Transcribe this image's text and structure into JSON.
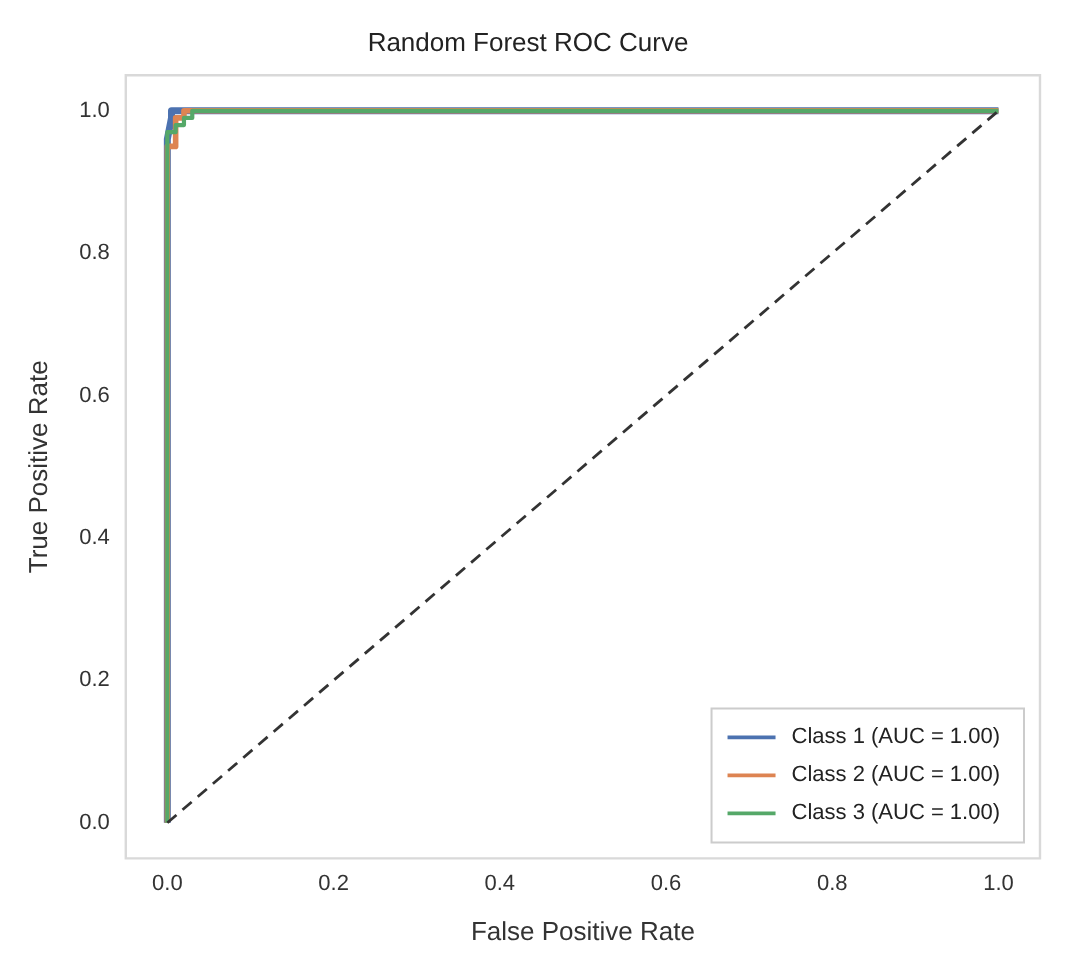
{
  "chart_data": {
    "type": "line",
    "title": "Random Forest ROC Curve",
    "xlabel": "False Positive Rate",
    "ylabel": "True Positive Rate",
    "series": [
      {
        "name": "Class 1 (AUC = 1.00)",
        "color": "#4c72b0",
        "x": [
          0,
          0,
          0.005,
          0.005,
          0.01,
          1
        ],
        "values": [
          0,
          0.96,
          0.99,
          1,
          1,
          1
        ]
      },
      {
        "name": "Class 2 (AUC = 1.00)",
        "color": "#dd8452",
        "x": [
          0,
          0,
          0.01,
          0.01,
          0.02,
          0.02,
          1
        ],
        "values": [
          0,
          0.95,
          0.95,
          0.99,
          0.99,
          1,
          1
        ]
      },
      {
        "name": "Class 3 (AUC = 1.00)",
        "color": "#55a868",
        "x": [
          0,
          0,
          0.01,
          0.01,
          0.02,
          0.02,
          0.03,
          0.03,
          1
        ],
        "values": [
          0,
          0.97,
          0.97,
          0.98,
          0.98,
          0.99,
          0.99,
          1,
          1
        ]
      },
      {
        "color": "#333333",
        "line_style": "dashed",
        "x": [
          0,
          1
        ],
        "values": [
          0,
          1
        ]
      }
    ],
    "xlim": [
      -0.05,
      1.05
    ],
    "ylim": [
      -0.05,
      1.05
    ],
    "xticks": [
      {
        "value": 0,
        "label": "0.0"
      },
      {
        "value": 0.2,
        "label": "0.2"
      },
      {
        "value": 0.4,
        "label": "0.4"
      },
      {
        "value": 0.6,
        "label": "0.6"
      },
      {
        "value": 0.8,
        "label": "0.8"
      },
      {
        "value": 1,
        "label": "1.0"
      }
    ],
    "yticks": [
      {
        "value": 0,
        "label": "0.0"
      },
      {
        "value": 0.2,
        "label": "0.2"
      },
      {
        "value": 0.4,
        "label": "0.4"
      },
      {
        "value": 0.6,
        "label": "0.6"
      },
      {
        "value": 0.8,
        "label": "0.8"
      },
      {
        "value": 1,
        "label": "1.0"
      }
    ],
    "grid": false,
    "legend": "bottom right",
    "marker": "none"
  }
}
